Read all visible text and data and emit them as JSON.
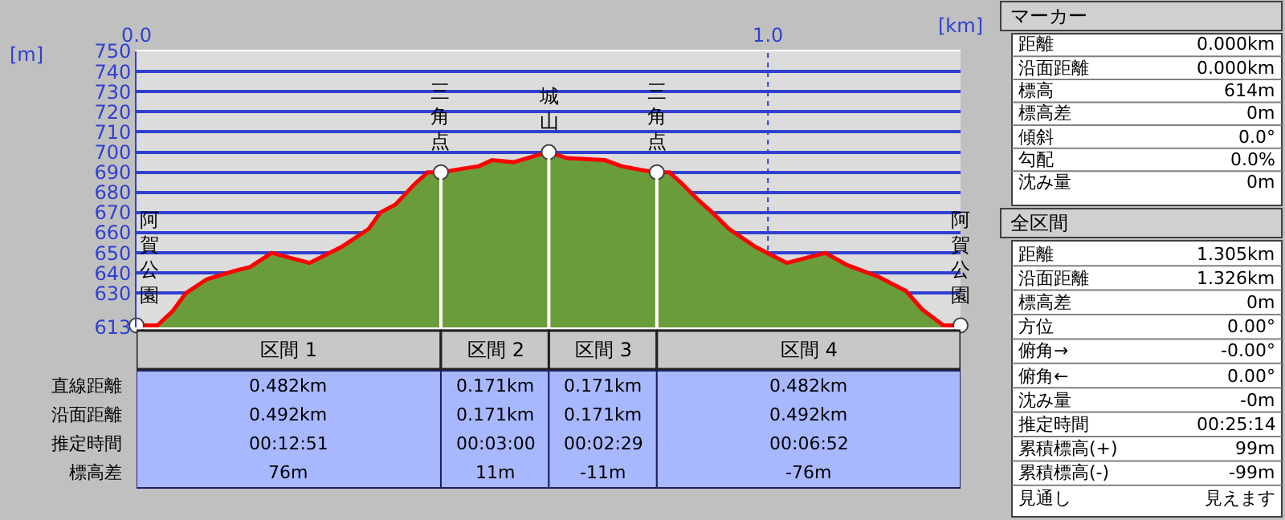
{
  "chart_data": {
    "type": "area",
    "xlabel": "[km]",
    "ylabel": "[m]",
    "x": [
      0,
      0.033,
      0.057,
      0.078,
      0.112,
      0.155,
      0.18,
      0.214,
      0.274,
      0.325,
      0.368,
      0.386,
      0.41,
      0.44,
      0.461,
      0.482,
      0.521,
      0.542,
      0.563,
      0.597,
      0.64,
      0.653,
      0.682,
      0.742,
      0.768,
      0.802,
      0.824,
      0.844,
      0.865,
      0.887,
      0.912,
      0.938,
      0.98,
      1.03,
      1.091,
      1.125,
      1.176,
      1.219,
      1.244,
      1.278,
      1.305
    ],
    "series": [
      {
        "color": "#6a9c3a",
        "values": [
          614,
          614,
          621,
          630,
          637,
          641,
          643,
          650,
          645,
          653,
          662,
          670,
          674,
          684,
          690,
          690,
          692,
          693,
          696,
          695,
          699,
          700,
          697,
          696,
          693,
          691,
          690,
          690,
          684,
          677,
          670,
          662,
          653,
          645,
          650,
          644,
          638,
          631,
          622,
          614,
          614
        ]
      },
      {
        "type": "line",
        "color": "#ff0000",
        "values": [
          614,
          614,
          621,
          630,
          637,
          641,
          643,
          650,
          645,
          653,
          662,
          670,
          674,
          684,
          690,
          690,
          692,
          693,
          696,
          695,
          699,
          700,
          697,
          696,
          693,
          691,
          690,
          690,
          684,
          677,
          670,
          662,
          653,
          645,
          650,
          644,
          638,
          631,
          622,
          614,
          614
        ]
      },
      {
        "type": "scatter",
        "color": "#ffffff",
        "marker": "circle",
        "x": [
          0,
          0.482,
          0.653,
          0.824,
          1.305
        ],
        "values": [
          614,
          690,
          700,
          690,
          614
        ]
      }
    ],
    "ref_lines": [
      {
        "axis": "x",
        "value": 0.482,
        "color": "#ffffff"
      },
      {
        "axis": "x",
        "value": 0.653,
        "color": "#ffffff"
      },
      {
        "axis": "x",
        "value": 0.824,
        "color": "#ffffff"
      },
      {
        "axis": "x",
        "value": 1,
        "color": "#3040d0",
        "line_style": "dotted"
      }
    ],
    "xlim": [
      0,
      1.305
    ],
    "ylim": [
      613,
      750
    ],
    "xticks": [
      {
        "value": 0,
        "label": "0.0"
      },
      {
        "value": 1,
        "label": "1.0"
      }
    ],
    "yticks": [
      613,
      630,
      640,
      650,
      660,
      670,
      680,
      690,
      700,
      710,
      720,
      730,
      740,
      750
    ],
    "grid": "y",
    "legend": false,
    "annotations": [
      {
        "text": "三角点",
        "x": 0.482,
        "y": 690
      },
      {
        "text": "城山",
        "x": 0.653,
        "y": 700
      },
      {
        "text": "三角点",
        "x": 0.824,
        "y": 690
      },
      {
        "text": "阿賀公園",
        "x": 0,
        "y": 614
      },
      {
        "text": "阿賀公園",
        "x": 1.305,
        "y": 614
      },
      "区間 1",
      "区間 2",
      "区間 3",
      "区間 4",
      "直線距離",
      "沿面距離",
      "推定時間",
      "標高差",
      "0.482km",
      "0.171km",
      "0.171km",
      "0.482km",
      "0.492km",
      "0.171km",
      "0.171km",
      "0.492km",
      "00:12:51",
      "00:03:00",
      "00:02:29",
      "00:06:52",
      "76m",
      "11m",
      "-11m",
      "-76m",
      "マーカー",
      "距離",
      "0.000km",
      "沿面距離",
      "0.000km",
      "標高",
      "614m",
      "標高差",
      "0m",
      "傾斜",
      "0.0°",
      "勾配",
      "0.0%",
      "沈み量",
      "0m",
      "全区間",
      "距離",
      "1.305km",
      "沿面距離",
      "1.326km",
      "標高差",
      "0m",
      "方位",
      "0.00°",
      "俯角→",
      "-0.00°",
      "俯角←",
      "0.00°",
      "沈み量",
      "-0m",
      "推定時間",
      "00:25:14",
      "累積標高(+)",
      "99m",
      "累積標高(-)",
      "-99m",
      "見通し",
      "見えます"
    ]
  }
}
